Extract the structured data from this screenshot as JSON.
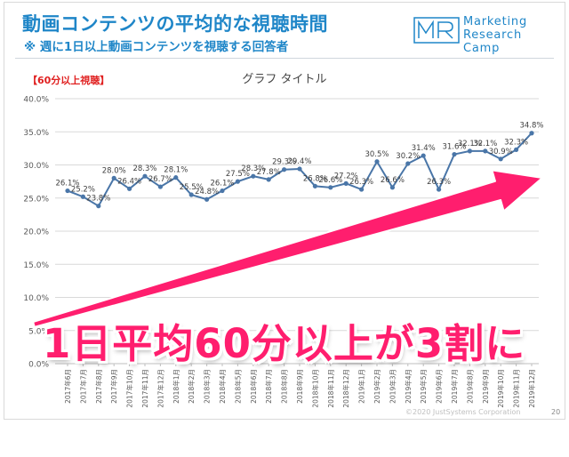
{
  "header": {
    "title": "動画コンテンツの平均的な視聴時間",
    "subtitle": "※ 週に1日以上動画コンテンツを視聴する回答者",
    "logo_line1": "Marketing",
    "logo_line2": "Research Camp"
  },
  "segment_tag": "【60分以上視聴】",
  "footer": {
    "copyright": "©2020 JustSystems Corporation",
    "page_number": "20"
  },
  "overlay": {
    "text": "1日平均60分以上が3割に",
    "color": "#ff1e6e"
  },
  "colors": {
    "accent": "#1f86c8",
    "line": "#4a76a8",
    "arrow": "#ff1e6e"
  },
  "chart_data": {
    "type": "line",
    "title": "グラフ タイトル",
    "xlabel": "",
    "ylabel": "",
    "ylim": [
      0,
      40
    ],
    "yticks": [
      "0.0%",
      "5.0%",
      "10.0%",
      "15.0%",
      "20.0%",
      "25.0%",
      "30.0%",
      "35.0%",
      "40.0%"
    ],
    "grid": true,
    "categories": [
      "2017年6月",
      "2017年7月",
      "2017年8月",
      "2017年9月",
      "2017年10月",
      "2017年11月",
      "2017年12月",
      "2018年1月",
      "2018年2月",
      "2018年3月",
      "2018年4月",
      "2018年5月",
      "2018年6月",
      "2018年7月",
      "2018年8月",
      "2018年9月",
      "2018年10月",
      "2018年11月",
      "2018年12月",
      "2019年1月",
      "2019年2月",
      "2019年3月",
      "2019年4月",
      "2019年5月",
      "2019年6月",
      "2019年7月",
      "2019年8月",
      "2019年9月",
      "2019年10月",
      "2019年11月",
      "2019年12月"
    ],
    "values": [
      26.1,
      25.2,
      23.8,
      28.0,
      26.4,
      28.3,
      26.7,
      28.1,
      25.5,
      24.8,
      26.1,
      27.5,
      28.3,
      27.8,
      29.3,
      29.4,
      26.8,
      26.6,
      27.2,
      26.3,
      30.5,
      26.6,
      30.2,
      31.4,
      26.3,
      31.6,
      32.1,
      32.1,
      30.9,
      32.3,
      34.8
    ],
    "labels": [
      "26.1%",
      "25.2%",
      "23.8%",
      "28.0%",
      "26.4%",
      "28.3%",
      "26.7%",
      "28.1%",
      "25.5%",
      "24.8%",
      "26.1%",
      "27.5%",
      "28.3%",
      "27.8%",
      "29.3%",
      "29.4%",
      "26.8%",
      "26.6%",
      "27.2%",
      "26.3%",
      "30.5%",
      "26.6%",
      "30.2%",
      "31.4%",
      "26.3%",
      "31.6%",
      "32.1%",
      "32.1%",
      "30.9%",
      "32.3%",
      "34.8%"
    ]
  }
}
